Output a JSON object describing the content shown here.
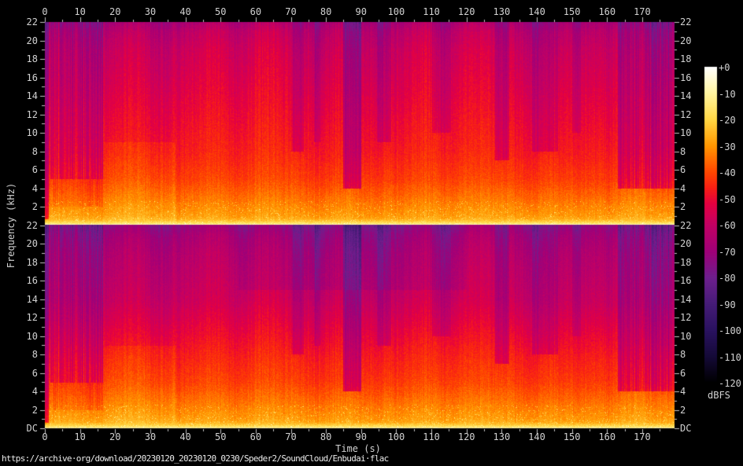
{
  "footer": {
    "url": "https://archive·org/download/20230120_20230120_0230/Speder2/SoundCloud/Enbudai·flac"
  },
  "colors": {
    "background": "#000000",
    "label_text": "#d2d2d2",
    "footer_text": "#ebebeb",
    "tick": "#c4c4c4"
  },
  "chart_data": {
    "type": "heatmap",
    "subtype": "stereo-audio-spectrogram",
    "title": "",
    "channels": [
      {
        "name": "channel-1-top"
      },
      {
        "name": "channel-2-bottom"
      }
    ],
    "x_axis": {
      "label": "Time (s)",
      "min": 0,
      "max": 179.2,
      "major_tick_step": 10,
      "minor_tick_step": 5,
      "tick_labels": [
        "0",
        "10",
        "20",
        "30",
        "40",
        "50",
        "60",
        "70",
        "80",
        "90",
        "100",
        "110",
        "120",
        "130",
        "140",
        "150",
        "160",
        "170"
      ],
      "shown_top_and_bottom": true
    },
    "y_axis": {
      "label": "Frequency (kHz)",
      "max_khz": 22,
      "major_tick_step_khz": 2,
      "minor_tick_step_khz": 1,
      "tick_labels": [
        "22",
        "20",
        "18",
        "16",
        "14",
        "12",
        "10",
        "8",
        "6",
        "4",
        "2"
      ],
      "dc_label": "DC",
      "shown_left_and_right": true
    },
    "colorbar": {
      "unit": "dBFS",
      "max_db": 0,
      "min_db": -120,
      "tick_labels": [
        "+0",
        "-10",
        "-20",
        "-30",
        "-40",
        "-50",
        "-60",
        "-70",
        "-80",
        "-90",
        "-100",
        "-110",
        "-120"
      ],
      "palette_stops": [
        [
          0,
          "#ffffff"
        ],
        [
          -10,
          "#fff5a0"
        ],
        [
          -20,
          "#ffd744"
        ],
        [
          -30,
          "#ff9600"
        ],
        [
          -40,
          "#ff4600"
        ],
        [
          -46,
          "#f81e16"
        ],
        [
          -52,
          "#e50042"
        ],
        [
          -60,
          "#c30064"
        ],
        [
          -70,
          "#a00078"
        ],
        [
          -80,
          "#6e1f8e"
        ],
        [
          -90,
          "#461c78"
        ],
        [
          -100,
          "#2a1260"
        ],
        [
          -110,
          "#150a38"
        ],
        [
          -120,
          "#000000"
        ]
      ]
    },
    "render": {
      "seed": 12345,
      "base_curve_khz_db": [
        [
          0,
          -13
        ],
        [
          0.3,
          -24
        ],
        [
          1,
          -29
        ],
        [
          2,
          -32
        ],
        [
          3,
          -35
        ],
        [
          5,
          -41
        ],
        [
          8,
          -46
        ],
        [
          12,
          -50
        ],
        [
          16,
          -54
        ],
        [
          19,
          -57
        ],
        [
          21,
          -61
        ],
        [
          22,
          -66
        ]
      ],
      "channel2_highfreq_extra_db": -6,
      "events": [
        {
          "t": [
            0,
            0.9
          ],
          "f": [
            0,
            22
          ],
          "db": -20,
          "stripe": 4,
          "note": "silent lead-in edge"
        },
        {
          "t": [
            0.9,
            16.5
          ],
          "f": [
            5,
            22
          ],
          "db": -9,
          "stripe": 13,
          "note": "intro: striped violet highs"
        },
        {
          "t": [
            0.9,
            16.5
          ],
          "f": [
            2,
            5
          ],
          "db": -3,
          "stripe": 5
        },
        {
          "t": [
            17,
            37
          ],
          "f": [
            0,
            9
          ],
          "db": 3,
          "stripe": 0,
          "note": "bright low/mid section"
        },
        {
          "t": [
            70,
            73.5
          ],
          "f": [
            8,
            22
          ],
          "db": -7,
          "stripe": 5
        },
        {
          "t": [
            76.4,
            78.2
          ],
          "f": [
            9,
            22
          ],
          "db": -6,
          "stripe": 4
        },
        {
          "t": [
            84.8,
            90
          ],
          "f": [
            4,
            22
          ],
          "db": -15,
          "stripe": 8,
          "note": "breakdown: dark indigo columns"
        },
        {
          "t": [
            94.5,
            98.5
          ],
          "f": [
            9,
            22
          ],
          "db": -7,
          "stripe": 5
        },
        {
          "t": [
            110,
            115.5
          ],
          "f": [
            10,
            22
          ],
          "db": -6,
          "stripe": 5
        },
        {
          "t": [
            128,
            132
          ],
          "f": [
            7,
            22
          ],
          "db": -9,
          "stripe": 5
        },
        {
          "t": [
            138.5,
            146
          ],
          "f": [
            8,
            22
          ],
          "db": -7,
          "stripe": 6
        },
        {
          "t": [
            150,
            152.5
          ],
          "f": [
            10,
            22
          ],
          "db": -5,
          "stripe": 4
        },
        {
          "t": [
            163,
            179.3
          ],
          "f": [
            4,
            22
          ],
          "db": -12,
          "stripe": 13,
          "note": "outro: striped violet highs"
        },
        {
          "t": [
            55,
            120
          ],
          "f": [
            15,
            22
          ],
          "db": -4,
          "stripe": 0,
          "ch": 2,
          "note": "right channel darker top band mid-song"
        }
      ]
    }
  }
}
